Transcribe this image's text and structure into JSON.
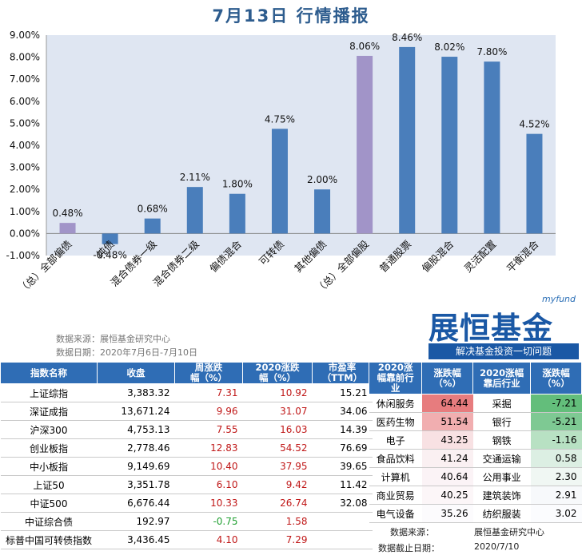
{
  "title": "7月13日  行情播报",
  "chart_data": {
    "type": "bar",
    "categories": [
      "（总）全部偏债",
      "纯债",
      "混合债券一级",
      "混合债券二级",
      "偏债混合",
      "可转债",
      "其他偏债",
      "（总）全部偏股",
      "普通股票",
      "偏股混合",
      "灵活配置",
      "平衡混合"
    ],
    "values": [
      0.48,
      -0.48,
      0.68,
      2.11,
      1.8,
      4.75,
      2.0,
      8.06,
      8.46,
      8.02,
      7.8,
      4.52
    ],
    "value_labels": [
      "0.48%",
      "-0.48%",
      "0.68%",
      "2.11%",
      "1.80%",
      "4.75%",
      "2.00%",
      "8.06%",
      "8.46%",
      "8.02%",
      "7.80%",
      "4.52%"
    ],
    "highlight_indices": [
      0,
      7
    ],
    "colors": {
      "default": "#4a7ebb",
      "highlight": "#a194c8"
    },
    "ylim": [
      -1,
      9
    ],
    "yticks": [
      "-1.00%",
      "0.00%",
      "1.00%",
      "2.00%",
      "3.00%",
      "4.00%",
      "5.00%",
      "6.00%",
      "7.00%",
      "8.00%",
      "9.00%"
    ],
    "plot_bg": "#dfe6f2"
  },
  "chart_source": "数据来源：展恒基金研究中心",
  "chart_date": "数据日期：2020年7月6日-7月10日",
  "logo": {
    "myfund": "myfund",
    "brand": "展恒基金",
    "slogan": "解决基金投资一切问题"
  },
  "index_table": {
    "headers": [
      "指数名称",
      "收盘",
      "周涨跌\n幅（%）",
      "2020涨跌\n幅（%）",
      "市盈率\n（TTM）"
    ],
    "rows": [
      {
        "name": "上证综指",
        "close": "3,383.32",
        "week": "7.31",
        "ytd": "10.92",
        "pe": "15.21",
        "week_color": "red",
        "ytd_color": "red"
      },
      {
        "name": "深证成指",
        "close": "13,671.24",
        "week": "9.96",
        "ytd": "31.07",
        "pe": "34.06",
        "week_color": "red",
        "ytd_color": "red"
      },
      {
        "name": "沪深300",
        "close": "4,753.13",
        "week": "7.55",
        "ytd": "16.03",
        "pe": "14.39",
        "week_color": "red",
        "ytd_color": "red"
      },
      {
        "name": "创业板指",
        "close": "2,778.46",
        "week": "12.83",
        "ytd": "54.52",
        "pe": "76.69",
        "week_color": "red",
        "ytd_color": "red"
      },
      {
        "name": "中小板指",
        "close": "9,149.69",
        "week": "10.40",
        "ytd": "37.95",
        "pe": "39.65",
        "week_color": "red",
        "ytd_color": "red"
      },
      {
        "name": "上证50",
        "close": "3,351.78",
        "week": "6.10",
        "ytd": "9.42",
        "pe": "11.42",
        "week_color": "red",
        "ytd_color": "red"
      },
      {
        "name": "中证500",
        "close": "6,676.44",
        "week": "10.33",
        "ytd": "26.74",
        "pe": "32.08",
        "week_color": "red",
        "ytd_color": "red"
      },
      {
        "name": "中证综合债",
        "close": "192.97",
        "week": "-0.75",
        "ytd": "1.58",
        "pe": "",
        "week_color": "green",
        "ytd_color": "red"
      },
      {
        "name": "标普中国可转债指数",
        "close": "3,436.45",
        "week": "4.10",
        "ytd": "7.29",
        "pe": "",
        "week_color": "red",
        "ytd_color": "red"
      }
    ]
  },
  "industry_table": {
    "headers": [
      "2020涨\n幅靠前行\n业",
      "涨跌幅\n（%）",
      "2020涨幅\n靠后行业",
      "涨跌幅\n（%）"
    ],
    "rows": [
      {
        "top": "休闲服务",
        "top_v": "64.44",
        "bot": "采掘",
        "bot_v": "-7.21",
        "top_bg": "#e77c7e",
        "bot_bg": "#63be7b"
      },
      {
        "top": "医药生物",
        "top_v": "51.54",
        "bot": "银行",
        "bot_v": "-5.21",
        "top_bg": "#f1aeb0",
        "bot_bg": "#7ec993"
      },
      {
        "top": "电子",
        "top_v": "43.25",
        "bot": "钢铁",
        "bot_v": "-1.16",
        "top_bg": "#f8e1e3",
        "bot_bg": "#b8e1c3"
      },
      {
        "top": "食品饮料",
        "top_v": "41.24",
        "bot": "交通运输",
        "bot_v": "0.58",
        "top_bg": "#faf0f2",
        "bot_bg": "#dcefe3"
      },
      {
        "top": "计算机",
        "top_v": "40.64",
        "bot": "公用事业",
        "bot_v": "2.30",
        "top_bg": "#fbf3f6",
        "bot_bg": "#f0f7f3"
      },
      {
        "top": "商业贸易",
        "top_v": "40.25",
        "bot": "建筑装饰",
        "bot_v": "2.91",
        "top_bg": "#fcf6f8",
        "bot_bg": "#f7f9fb"
      },
      {
        "top": "电气设备",
        "top_v": "35.26",
        "bot": "纺织服装",
        "bot_v": "3.02",
        "top_bg": "#fcfbfd",
        "bot_bg": "#fbfcfe"
      }
    ]
  },
  "footer": {
    "source_label": "数据来源：",
    "source_value": "展恒基金研究中心",
    "date_label": "数据截止日期：",
    "date_value": "2020/7/10"
  }
}
